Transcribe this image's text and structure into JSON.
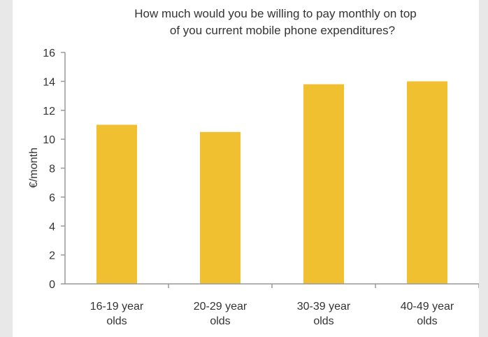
{
  "chart_data": {
    "type": "bar",
    "title": "How much would you be willing to pay monthly on top of you current mobile phone expenditures?",
    "title_lines": [
      "How much would you be willing to pay monthly on top",
      "of you current mobile phone expenditures?"
    ],
    "xlabel": "",
    "ylabel": "€/month",
    "categories": [
      "16-19 year olds",
      "20-29 year olds",
      "30-39 year olds",
      "40-49 year olds"
    ],
    "category_lines": [
      [
        "16-19 year",
        "olds"
      ],
      [
        "20-29 year",
        "olds"
      ],
      [
        "30-39 year",
        "olds"
      ],
      [
        "40-49 year",
        "olds"
      ]
    ],
    "values": [
      11,
      10.5,
      13.8,
      14
    ],
    "ylim": [
      0,
      16
    ],
    "yticks": [
      0,
      2,
      4,
      6,
      8,
      10,
      12,
      14,
      16
    ],
    "grid": false,
    "colors": {
      "bar": "#f0c030",
      "axis": "#999999",
      "background": "#e8e8e8",
      "panel": "#ffffff"
    }
  }
}
